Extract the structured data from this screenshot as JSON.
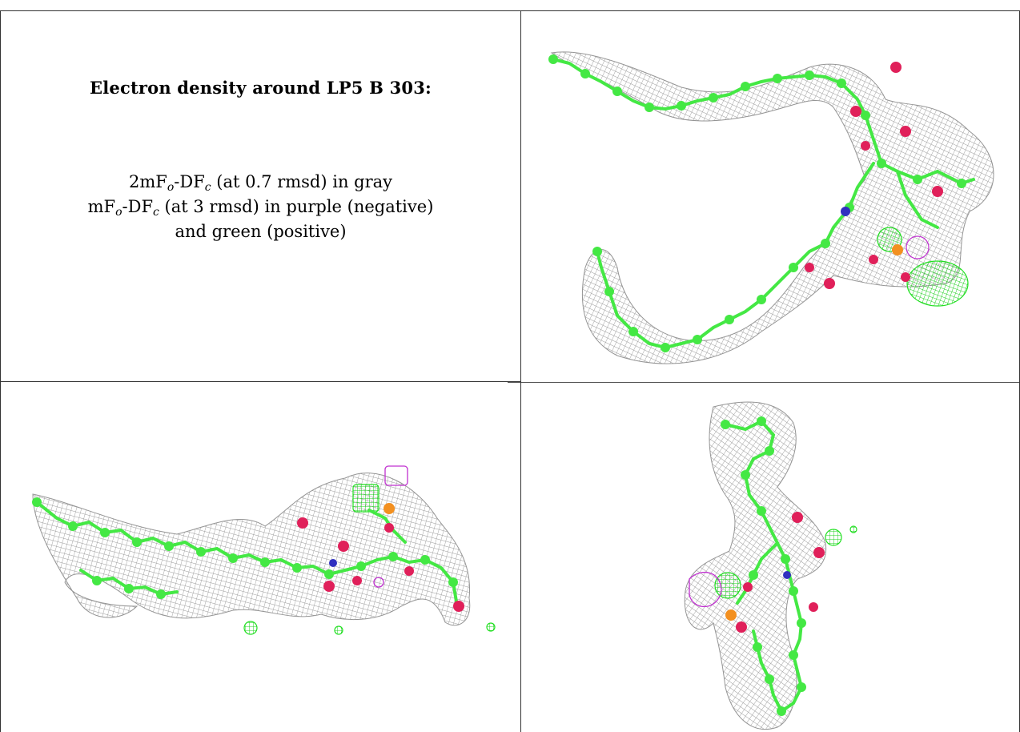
{
  "panel": {
    "title": "Electron density around LP5 B 303:",
    "line1": {
      "a": "2mF",
      "s1": "o",
      "b": "-DF",
      "s2": "c",
      "c": " (at 0.7 rmsd) in gray"
    },
    "line2": {
      "a": "mF",
      "s1": "o",
      "b": "-DF",
      "s2": "c",
      "c": " (at 3 rmsd) in purple (negative)"
    },
    "line3": "and green (positive)"
  },
  "colors": {
    "mesh": "#9a9a9a",
    "carbon": "#44e844",
    "oxygen": "#e0205a",
    "nitrogen": "#3030c0",
    "phosphorus": "#f39020",
    "negative": "#c030d0",
    "positive": "#30e030"
  }
}
